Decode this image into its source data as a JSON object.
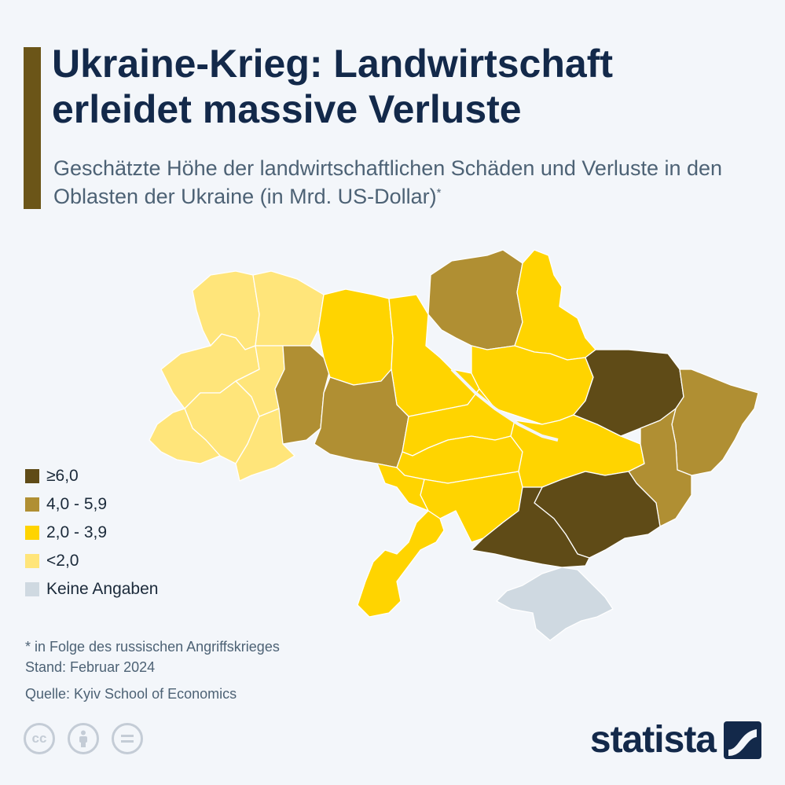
{
  "header": {
    "title": "Ukraine-Krieg: Landwirtschaft erleidet massive Verluste",
    "subtitle": "Geschätzte Höhe der landwirtschaftlichen Schäden und Verluste in den Oblasten der Ukraine (in Mrd. US-Dollar)",
    "subtitle_mark": "*"
  },
  "legend": [
    {
      "label": "≥6,0",
      "color": "#5f4b17"
    },
    {
      "label": "4,0 - 5,9",
      "color": "#b08f33"
    },
    {
      "label": "2,0 - 3,9",
      "color": "#ffd400"
    },
    {
      "label": "<2,0",
      "color": "#ffe57a"
    },
    {
      "label": "Keine Angaben",
      "color": "#cfd9e1"
    }
  ],
  "footnotes": {
    "note": "* in Folge des russischen Angriffskrieges",
    "stand": "Stand: Februar 2024",
    "source": "Quelle: Kyiv School of Economics"
  },
  "brand": {
    "name": "statista"
  },
  "icons": [
    "cc-icon",
    "attribution-icon",
    "no-derivatives-icon"
  ]
}
